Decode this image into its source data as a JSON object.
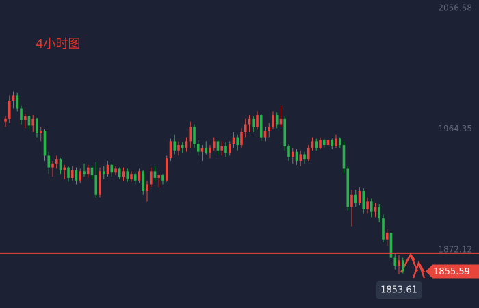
{
  "chart_data": {
    "type": "candlestick",
    "title": "4小时图",
    "open": [
      1970,
      1972,
      1986,
      1990,
      1980,
      1971,
      1974,
      1967,
      1972,
      1961,
      1963,
      1944,
      1935,
      1938,
      1941,
      1933,
      1935,
      1927,
      1933,
      1925,
      1932,
      1930,
      1935,
      1929,
      1914,
      1932,
      1930,
      1937,
      1931,
      1934,
      1928,
      1932,
      1926,
      1930,
      1925,
      1932,
      1917,
      1922,
      1932,
      1927,
      1929,
      1925,
      1942,
      1955,
      1948,
      1952,
      1950,
      1955,
      1966,
      1953,
      1947,
      1950,
      1946,
      1950,
      1955,
      1948,
      1951,
      1946,
      1953,
      1958,
      1952,
      1962,
      1968,
      1972,
      1966,
      1975,
      1958,
      1963,
      1966,
      1975,
      1968,
      1972,
      1951,
      1943,
      1947,
      1940,
      1945,
      1941,
      1950,
      1955,
      1950,
      1956,
      1952,
      1956,
      1951,
      1957,
      1952,
      1934,
      1905,
      1914,
      1908,
      1917,
      1903,
      1909,
      1901,
      1905,
      1896,
      1880,
      1885,
      1866,
      1860,
      1864
    ],
    "high": [
      1974,
      1990,
      1993,
      1992,
      1982,
      1976,
      1975,
      1975,
      1973,
      1966,
      1964,
      1947,
      1940,
      1944,
      1942,
      1937,
      1936,
      1936,
      1935,
      1934,
      1938,
      1937,
      1936,
      1939,
      1935,
      1936,
      1940,
      1938,
      1936,
      1935,
      1935,
      1934,
      1932,
      1931,
      1934,
      1933,
      1925,
      1935,
      1936,
      1930,
      1930,
      1944,
      1957,
      1960,
      1955,
      1954,
      1958,
      1970,
      1968,
      1956,
      1952,
      1955,
      1952,
      1958,
      1956,
      1955,
      1954,
      1955,
      1962,
      1960,
      1965,
      1972,
      1975,
      1974,
      1978,
      1976,
      1966,
      1969,
      1978,
      1977,
      1982,
      1974,
      1953,
      1950,
      1949,
      1948,
      1947,
      1952,
      1958,
      1957,
      1958,
      1957,
      1958,
      1957,
      1960,
      1958,
      1955,
      1936,
      1918,
      1918,
      1920,
      1919,
      1912,
      1911,
      1908,
      1907,
      1899,
      1888,
      1887,
      1870,
      1868,
      1866
    ],
    "low": [
      1966,
      1969,
      1980,
      1978,
      1968,
      1965,
      1964,
      1962,
      1958,
      1955,
      1940,
      1930,
      1928,
      1934,
      1930,
      1926,
      1924,
      1925,
      1922,
      1923,
      1928,
      1927,
      1926,
      1912,
      1912,
      1926,
      1928,
      1928,
      1929,
      1926,
      1925,
      1924,
      1924,
      1922,
      1923,
      1914,
      1909,
      1920,
      1924,
      1920,
      1922,
      1924,
      1940,
      1945,
      1944,
      1946,
      1947,
      1950,
      1950,
      1944,
      1940,
      1945,
      1942,
      1948,
      1945,
      1944,
      1943,
      1944,
      1950,
      1948,
      1950,
      1958,
      1962,
      1962,
      1964,
      1955,
      1955,
      1958,
      1964,
      1965,
      1966,
      1948,
      1940,
      1938,
      1937,
      1936,
      1938,
      1940,
      1948,
      1948,
      1949,
      1950,
      1951,
      1949,
      1950,
      1950,
      1930,
      1902,
      1890,
      1905,
      1906,
      1900,
      1900,
      1897,
      1897,
      1893,
      1878,
      1875,
      1863,
      1857,
      1853.61,
      1854
    ],
    "close": [
      1972,
      1986,
      1990,
      1980,
      1971,
      1974,
      1967,
      1972,
      1961,
      1963,
      1944,
      1935,
      1938,
      1941,
      1933,
      1935,
      1927,
      1933,
      1925,
      1932,
      1930,
      1935,
      1929,
      1914,
      1932,
      1930,
      1937,
      1931,
      1934,
      1928,
      1932,
      1926,
      1930,
      1925,
      1932,
      1917,
      1922,
      1932,
      1927,
      1929,
      1925,
      1942,
      1955,
      1948,
      1952,
      1950,
      1955,
      1966,
      1953,
      1947,
      1950,
      1946,
      1950,
      1955,
      1948,
      1951,
      1946,
      1953,
      1958,
      1952,
      1962,
      1968,
      1972,
      1966,
      1975,
      1958,
      1963,
      1966,
      1975,
      1968,
      1972,
      1951,
      1943,
      1947,
      1940,
      1945,
      1941,
      1950,
      1955,
      1950,
      1956,
      1952,
      1956,
      1951,
      1957,
      1952,
      1934,
      1905,
      1914,
      1908,
      1917,
      1903,
      1909,
      1901,
      1905,
      1896,
      1880,
      1885,
      1866,
      1860,
      1864,
      1855.59
    ],
    "up_color": "#e8463c",
    "down_color": "#2bb24c",
    "ylim": [
      1827.6,
      2062.9
    ],
    "yticks": [
      2056.58,
      1964.35,
      1872.12
    ],
    "hline": 1869.5,
    "hline_color": "#e8463c",
    "current_price": 1855.59,
    "marked_low": 1853.61
  }
}
